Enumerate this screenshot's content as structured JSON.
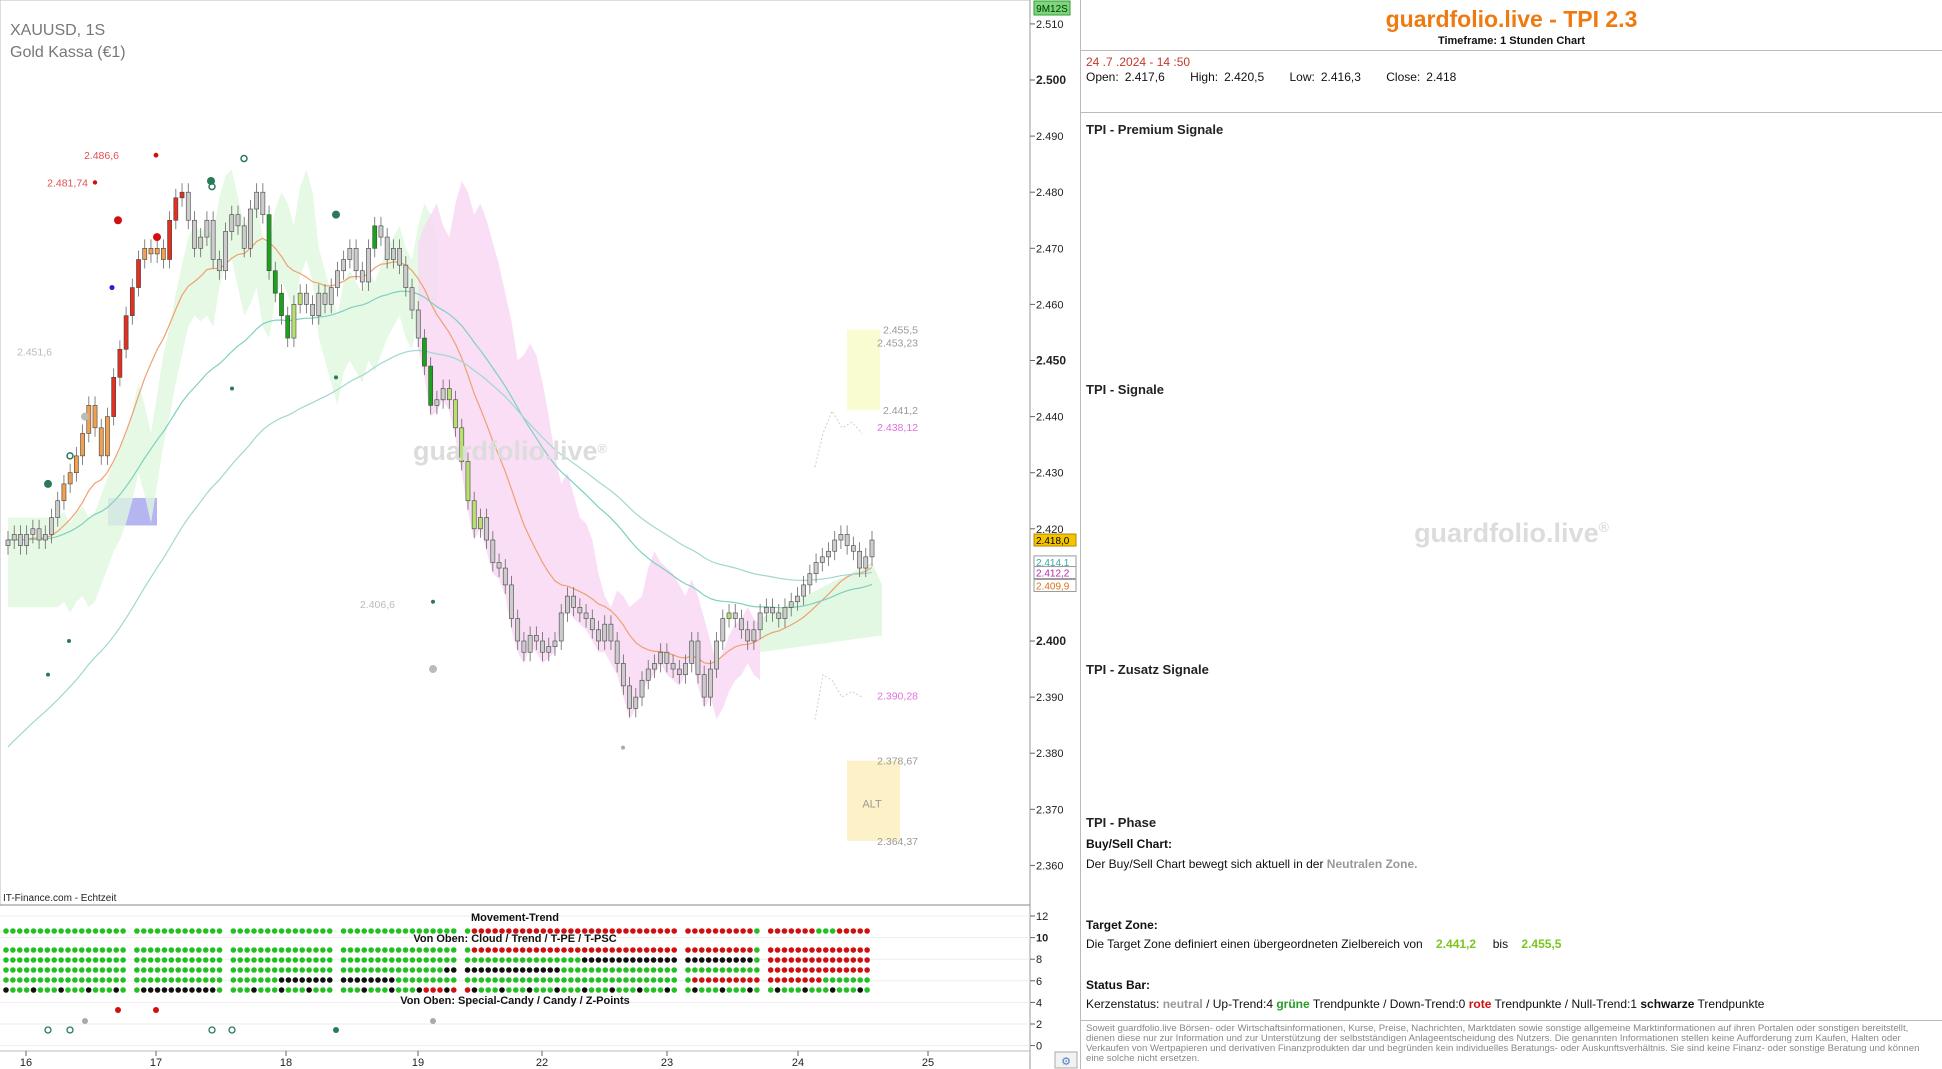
{
  "chart_info": {
    "symbol": "XAUUSD, 1S",
    "name": "Gold Kassa (€1)",
    "source": "IT-Finance.com - Echtzeit",
    "countdown": "9M12S",
    "watermark": "guardfolio.live",
    "watermark_mark": "®"
  },
  "chart_data": {
    "type": "candlestick",
    "x_labels": [
      "16",
      "17",
      "18",
      "19",
      "22",
      "23",
      "24",
      "25"
    ],
    "y_ticks": [
      "2.510",
      "2.500",
      "2.490",
      "2.480",
      "2.470",
      "2.460",
      "2.450",
      "2.440",
      "2.430",
      "2.420",
      "2.400",
      "2.390",
      "2.380",
      "2.370",
      "2.360"
    ],
    "y_bold_ticks": [
      "2.500",
      "2.450",
      "2.400"
    ],
    "ylim": [
      2356,
      2513
    ],
    "price_labels": [
      {
        "text": "2.418,0",
        "value": 2418.0,
        "bg": "#f5c400",
        "color": "#000"
      },
      {
        "text": "2.414,1",
        "value": 2414.1,
        "bg": "#ffffff",
        "color": "#3aa6a6"
      },
      {
        "text": "2.412,2",
        "value": 2412.2,
        "bg": "#ffffff",
        "color": "#b02aa8"
      },
      {
        "text": "2.409,9",
        "value": 2409.9,
        "bg": "#ffffff",
        "color": "#e0701a"
      }
    ],
    "annotations": [
      {
        "text": "2.486,6",
        "color": "#e05050"
      },
      {
        "text": "2.481,74",
        "color": "#e05050"
      },
      {
        "text": "2.451,6",
        "color": "#bbbbbb"
      },
      {
        "text": "2.406,6",
        "color": "#bbbbbb"
      },
      {
        "text": "2.455,5",
        "color": "#999999"
      },
      {
        "text": "2.453,23",
        "color": "#999999"
      },
      {
        "text": "2.441,2",
        "color": "#999999"
      },
      {
        "text": "2.438,12",
        "color": "#e070e0"
      },
      {
        "text": "2.390,28",
        "color": "#e070e0"
      },
      {
        "text": "2.378,67",
        "color": "#999999"
      },
      {
        "text": "2.364,37",
        "color": "#999999"
      }
    ],
    "alt_label": "ALT",
    "closes": [
      2418,
      2419,
      2417,
      2419,
      2420,
      2418,
      2419,
      2422,
      2425,
      2428,
      2430,
      2433,
      2437,
      2442,
      2438,
      2433,
      2440,
      2447,
      2452,
      2458,
      2463,
      2468,
      2470,
      2469,
      2470,
      2468,
      2475,
      2479,
      2480,
      2475,
      2470,
      2472,
      2475,
      2468,
      2466,
      2473,
      2476,
      2474,
      2470,
      2477,
      2480,
      2476,
      2466,
      2462,
      2458,
      2454,
      2460,
      2462,
      2460,
      2458,
      2462,
      2460,
      2463,
      2466,
      2468,
      2470,
      2466,
      2464,
      2470,
      2474,
      2472,
      2468,
      2470,
      2467,
      2463,
      2459,
      2454,
      2449,
      2442,
      2443,
      2445,
      2443,
      2438,
      2432,
      2425,
      2420,
      2422,
      2418,
      2414,
      2413,
      2410,
      2404,
      2400,
      2398,
      2401,
      2400,
      2398,
      2399,
      2400,
      2405,
      2408,
      2406,
      2405,
      2404,
      2402,
      2400,
      2403,
      2400,
      2396,
      2392,
      2388,
      2390,
      2393,
      2395,
      2396,
      2398,
      2396,
      2395,
      2394,
      2396,
      2400,
      2394,
      2390,
      2395,
      2400,
      2404,
      2405,
      2404,
      2402,
      2400,
      2402,
      2405,
      2406,
      2405,
      2404,
      2406,
      2407,
      2408,
      2410,
      2412,
      2414,
      2415,
      2416,
      2418,
      2419,
      2417,
      2416,
      2413,
      2415,
      2418
    ],
    "trend_colors": [
      "g",
      "g",
      "g",
      "g",
      "g",
      "g",
      "g",
      "g",
      "g",
      "o",
      "o",
      "o",
      "o",
      "o",
      "o",
      "o",
      "o",
      "r",
      "r",
      "r",
      "r",
      "r",
      "o",
      "o",
      "o",
      "o",
      "r",
      "r",
      "r",
      "g",
      "g",
      "g",
      "g",
      "g",
      "g",
      "g",
      "g",
      "g",
      "g",
      "g",
      "g",
      "g",
      "G",
      "G",
      "G",
      "G",
      "y",
      "y",
      "g",
      "g",
      "g",
      "g",
      "g",
      "g",
      "g",
      "g",
      "g",
      "g",
      "g",
      "G",
      "g",
      "g",
      "g",
      "g",
      "g",
      "g",
      "g",
      "G",
      "G",
      "g",
      "g",
      "y",
      "y",
      "y",
      "y",
      "y",
      "y",
      "g",
      "g",
      "g",
      "g",
      "g",
      "g",
      "g",
      "g",
      "g",
      "g",
      "g",
      "g",
      "g",
      "g",
      "g",
      "g",
      "g",
      "g",
      "g",
      "g",
      "g",
      "g",
      "g",
      "g",
      "g",
      "g",
      "g",
      "g",
      "g",
      "g",
      "g",
      "g",
      "g",
      "g",
      "g",
      "g",
      "g",
      "g",
      "g",
      "y",
      "g",
      "g",
      "g",
      "g",
      "g",
      "g",
      "g",
      "g",
      "g",
      "g",
      "g",
      "g",
      "g",
      "g",
      "g",
      "g",
      "g",
      "g",
      "g",
      "g",
      "g",
      "g",
      "g"
    ]
  },
  "indicator": {
    "title": "Movement-Trend",
    "row_label_1": "Von Oben: Cloud / Trend / T-PE / T-PSC",
    "row_label_2": "Von Oben: Special-Candy / Candy / Z-Points",
    "y_ticks": [
      "12",
      "10",
      "8",
      "6",
      "4",
      "2",
      "0"
    ],
    "y_bold_tick": "10"
  },
  "panel": {
    "brand": "guardfolio.live - TPI 2.3",
    "timeframe_label": "Timeframe:",
    "timeframe_value": "1 Stunden Chart",
    "date": "24 .7 .2024  - 14 :50",
    "open_label": "Open:",
    "open": "2.417,6",
    "high_label": "High:",
    "high": "2.420,5",
    "low_label": "Low:",
    "low": "2.416,3",
    "close_label": "Close:",
    "close": "2.418",
    "sections": [
      {
        "title": "TPI - Premium Signale",
        "color": "#e8781a"
      },
      {
        "title": "TPI - Signale",
        "color": "#1f87a8"
      },
      {
        "title": "TPI - Zusatz Signale",
        "color": "#7a1f86"
      },
      {
        "title": "TPI - Phase",
        "color": "#5aa51e"
      }
    ],
    "watermark": "guardfolio.live",
    "watermark_mark": "®",
    "buysell_title": "Buy/Sell Chart:",
    "buysell_text": "Der Buy/Sell Chart bewegt sich aktuell in der",
    "buysell_zone": "Neutralen Zone.",
    "target_title": "Target Zone:",
    "target_text": "Die Target Zone definiert einen übergeordneten Zielbereich von",
    "target_low": "2.441,2",
    "target_bis": "bis",
    "target_high": "2.455,5",
    "status_title": "Status Bar:",
    "status_kerzen": "Kerzenstatus:",
    "status_neutral": "neutral",
    "status_up": "/ Up-Trend:4",
    "status_gruene": "grüne",
    "status_trendpunkte1": "Trendpunkte",
    "status_down": "/ Down-Trend:0",
    "status_rote": "rote",
    "status_trendpunkte2": "Trendpunkte",
    "status_null": "/ Null-Trend:1",
    "status_schwarze": "schwarze",
    "status_trendpunkte3": "Trendpunkte",
    "disclaimer": "Soweit guardfolio.live Börsen- oder Wirtschaftsinformationen, Kurse, Preise, Nachrichten, Marktdaten sowie sonstige allgemeine Marktinformationen auf ihren Portalen oder sonstigen bereitstellt, dienen diese nur zur Information und zur Unterstützung der selbstständigen Anlageentscheidung des Nutzers. Die genannten Informationen stellen keine Aufforderung zum Kaufen, Halten oder Verkaufen von Wertpapieren und derivativen Finanzprodukten dar und begründen kein individuelles Beratungs- oder Auskunftsverhältnis. Sie sind keine Finanz- oder sonstige Beratung und können eine solche nicht ersetzen."
  }
}
